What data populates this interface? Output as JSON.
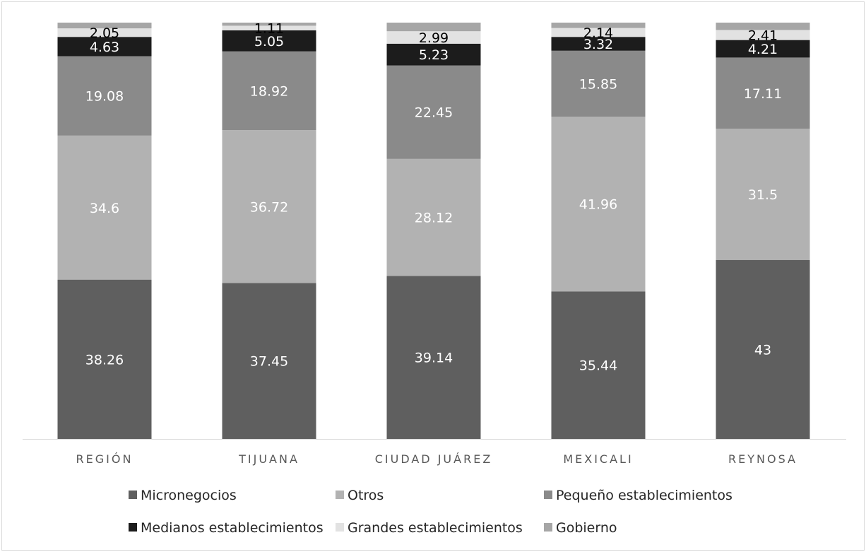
{
  "chart_data": {
    "type": "bar",
    "stacked": true,
    "categories": [
      "REGIÓN",
      "TIJUANA",
      "CIUDAD JUÁREZ",
      "MEXICALI",
      "REYNOSA"
    ],
    "series": [
      {
        "name": "Micronegocios",
        "color": "#5f5f5f",
        "label_color": "#ffffff",
        "values": [
          38.26,
          37.45,
          39.14,
          35.44,
          43
        ]
      },
      {
        "name": "Otros",
        "color": "#b2b2b2",
        "label_color": "#ffffff",
        "values": [
          34.6,
          36.72,
          28.12,
          41.96,
          31.5
        ]
      },
      {
        "name": "Pequeño establecimientos",
        "color": "#8a8a8a",
        "label_color": "#ffffff",
        "values": [
          19.08,
          18.92,
          22.45,
          15.85,
          17.11
        ]
      },
      {
        "name": "Medianos establecimientos",
        "color": "#1c1c1c",
        "label_color": "#ffffff",
        "values": [
          4.63,
          5.05,
          5.23,
          3.32,
          4.21
        ]
      },
      {
        "name": "Grandes establecimientos",
        "color": "#e2e2e2",
        "label_color": "#000000",
        "values": [
          2.05,
          1.11,
          2.99,
          2.14,
          2.41
        ]
      },
      {
        "name": "Gobierno",
        "color": "#a6a6a6",
        "label_color": "#000000",
        "values": [
          1.38,
          0.75,
          2.07,
          1.29,
          1.77
        ]
      }
    ],
    "label_series": [
      0,
      1,
      2,
      3,
      4
    ],
    "ylim": [
      0,
      100
    ],
    "grid": false,
    "legend_position": "bottom"
  }
}
